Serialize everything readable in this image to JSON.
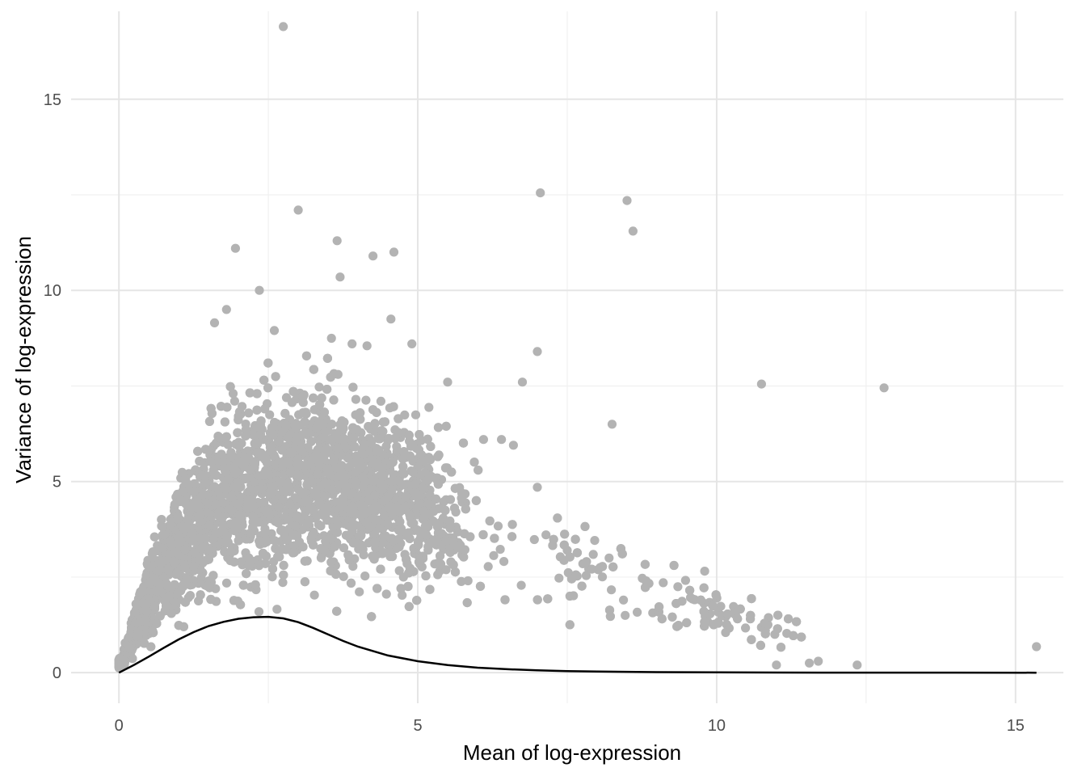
{
  "chart_data": {
    "type": "scatter",
    "title": "",
    "xlabel": "Mean of log-expression",
    "ylabel": "Variance of log-expression",
    "xlim": [
      -0.8,
      15.8
    ],
    "ylim": [
      -0.8,
      17.3
    ],
    "x_ticks": [
      0,
      5,
      10,
      15
    ],
    "x_tick_labels": [
      "0",
      "5",
      "10",
      "15"
    ],
    "y_ticks": [
      0,
      5,
      10,
      15
    ],
    "y_tick_labels": [
      "0",
      "5",
      "10",
      "15"
    ],
    "grid": true,
    "legend": "none",
    "colors": {
      "points": "#b3b3b3",
      "trend": "#000000",
      "grid": "#e5e5e5",
      "background": "#ffffff"
    },
    "density_note": "dense cloud of several thousand genes between mean 0 and 12",
    "outliers": [
      {
        "x": 2.75,
        "y": 16.9
      },
      {
        "x": 3.0,
        "y": 12.1
      },
      {
        "x": 1.95,
        "y": 11.1
      },
      {
        "x": 3.65,
        "y": 11.3
      },
      {
        "x": 3.7,
        "y": 10.35
      },
      {
        "x": 4.25,
        "y": 10.9
      },
      {
        "x": 4.6,
        "y": 11.0
      },
      {
        "x": 2.35,
        "y": 10.0
      },
      {
        "x": 1.8,
        "y": 9.5
      },
      {
        "x": 1.6,
        "y": 9.15
      },
      {
        "x": 4.55,
        "y": 9.25
      },
      {
        "x": 7.05,
        "y": 12.55
      },
      {
        "x": 8.5,
        "y": 12.35
      },
      {
        "x": 8.6,
        "y": 11.55
      },
      {
        "x": 7.0,
        "y": 8.4
      },
      {
        "x": 6.75,
        "y": 7.6
      },
      {
        "x": 8.25,
        "y": 6.5
      },
      {
        "x": 10.75,
        "y": 7.55
      },
      {
        "x": 12.8,
        "y": 7.45
      },
      {
        "x": 7.0,
        "y": 4.85
      },
      {
        "x": 9.35,
        "y": 2.25
      },
      {
        "x": 15.35,
        "y": 0.68
      },
      {
        "x": 12.35,
        "y": 0.2
      },
      {
        "x": 9.95,
        "y": 1.25
      },
      {
        "x": 10.15,
        "y": 1.05
      },
      {
        "x": 5.5,
        "y": 7.6
      },
      {
        "x": 4.9,
        "y": 8.6
      },
      {
        "x": 3.9,
        "y": 8.6
      },
      {
        "x": 4.15,
        "y": 8.55
      },
      {
        "x": 2.6,
        "y": 8.95
      },
      {
        "x": 6.4,
        "y": 6.1
      },
      {
        "x": 6.6,
        "y": 5.95
      },
      {
        "x": 6.1,
        "y": 6.1
      },
      {
        "x": 8.2,
        "y": 3.0
      },
      {
        "x": 8.05,
        "y": 2.75
      },
      {
        "x": 7.5,
        "y": 3.2
      },
      {
        "x": 11.55,
        "y": 0.25
      },
      {
        "x": 11.7,
        "y": 0.3
      },
      {
        "x": 11.0,
        "y": 0.2
      }
    ],
    "trend_line": {
      "x": [
        0,
        0.25,
        0.5,
        0.75,
        1.0,
        1.25,
        1.5,
        1.75,
        2.0,
        2.25,
        2.5,
        2.75,
        3.0,
        3.25,
        3.5,
        3.75,
        4.0,
        4.5,
        5.0,
        5.5,
        6.0,
        6.5,
        7.0,
        7.5,
        8.0,
        9.0,
        10.0,
        11.0,
        12.0,
        13.0,
        14.0,
        15.35
      ],
      "y": [
        0.0,
        0.2,
        0.42,
        0.65,
        0.87,
        1.06,
        1.22,
        1.33,
        1.41,
        1.45,
        1.46,
        1.42,
        1.32,
        1.17,
        1.0,
        0.83,
        0.68,
        0.45,
        0.3,
        0.2,
        0.13,
        0.09,
        0.06,
        0.04,
        0.03,
        0.015,
        0.008,
        0.004,
        0.002,
        0.001,
        0.0005,
        0.0
      ]
    }
  }
}
